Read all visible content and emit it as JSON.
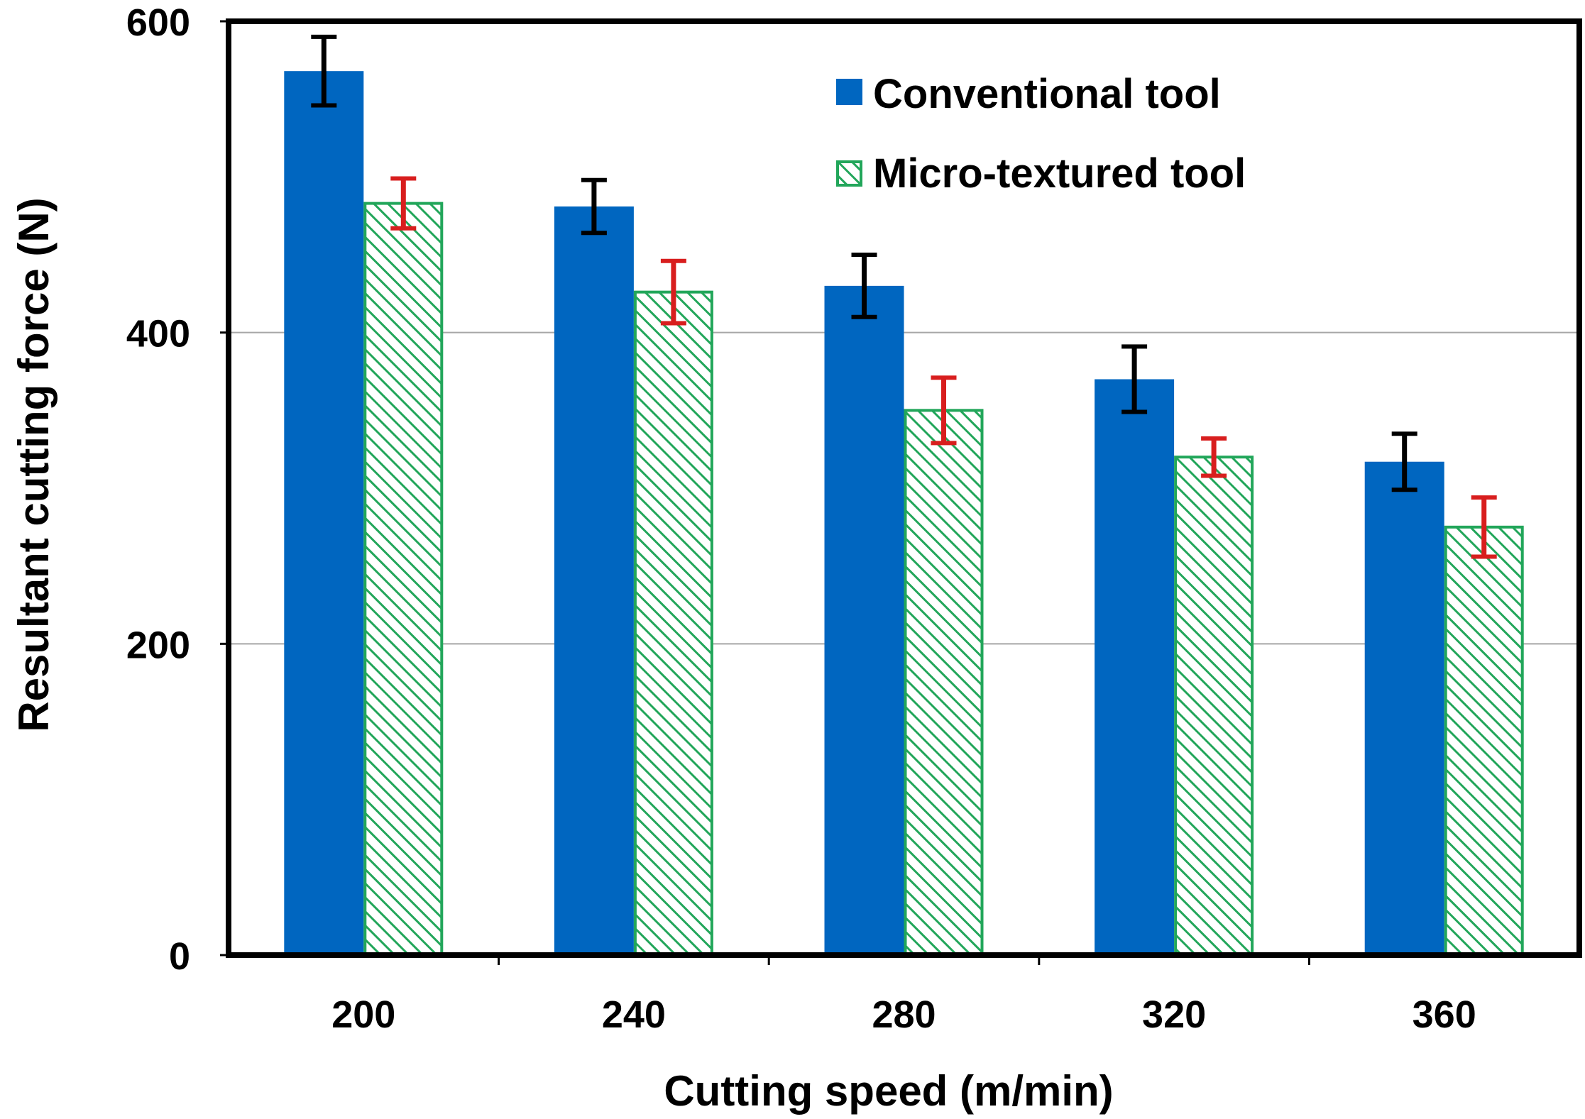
{
  "chart_data": {
    "type": "bar",
    "xlabel": "Cutting speed (m/min)",
    "ylabel": "Resultant cutting force (N)",
    "categories": [
      "200",
      "240",
      "280",
      "320",
      "360"
    ],
    "ylim": [
      0,
      600
    ],
    "yticks": [
      "0",
      "200",
      "400",
      "600"
    ],
    "grid": true,
    "legend_position": "top-right",
    "series": [
      {
        "name": "Conventional tool",
        "values": [
          568,
          481,
          430,
          370,
          317
        ],
        "errors": [
          22,
          17,
          20,
          21,
          18
        ],
        "fill": "#0066C0",
        "pattern": "solid",
        "error_color": "#000000"
      },
      {
        "name": "Micro-textured tool",
        "values": [
          483,
          426,
          350,
          320,
          275
        ],
        "errors": [
          16,
          20,
          21,
          12,
          19
        ],
        "fill": "#FFFFFF",
        "hatch_color": "#22A65A",
        "pattern": "diagonal-hatch",
        "error_color": "#D81E1E"
      }
    ]
  }
}
